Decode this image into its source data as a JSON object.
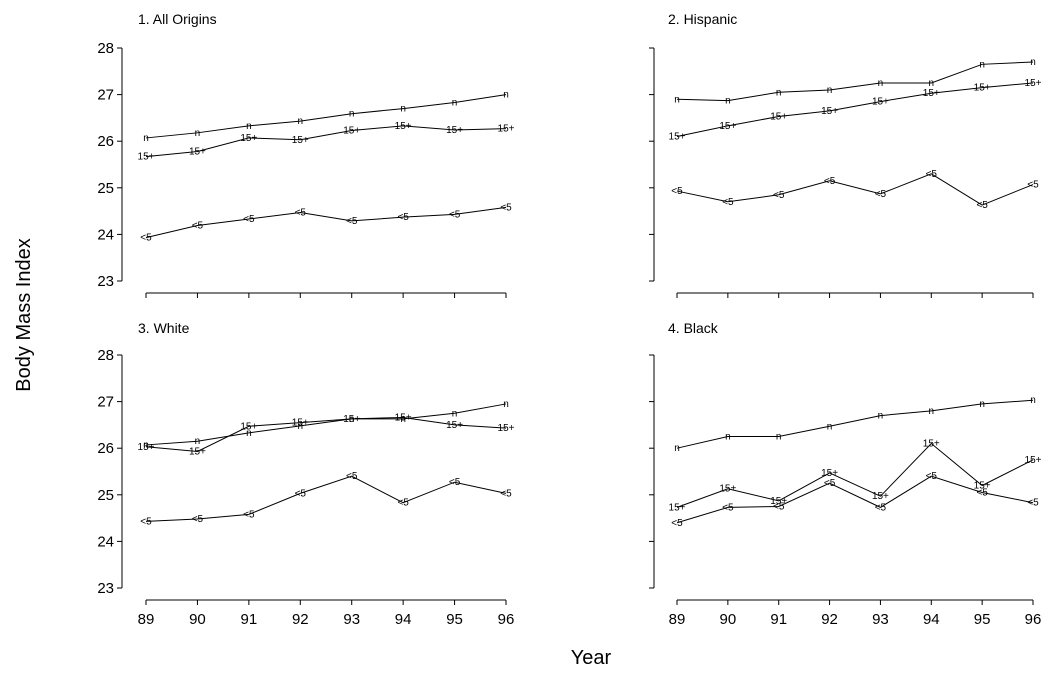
{
  "chart_data": {
    "type": "line",
    "xlabel": "Year",
    "ylabel": "Body Mass Index",
    "x": [
      "89",
      "90",
      "91",
      "92",
      "93",
      "94",
      "95",
      "96"
    ],
    "ylim": [
      23,
      28
    ],
    "yticks": [
      "23",
      "24",
      "25",
      "26",
      "27",
      "28"
    ],
    "grid": false,
    "panels": [
      {
        "title": "1. All Origins",
        "series": [
          {
            "name": "n",
            "values": [
              26.07,
              26.18,
              26.33,
              26.43,
              26.59,
              26.7,
              26.83,
              27.0
            ]
          },
          {
            "name": "15+",
            "values": [
              25.67,
              25.78,
              26.07,
              26.03,
              26.23,
              26.33,
              26.24,
              26.27
            ]
          },
          {
            "name": "<5",
            "values": [
              23.93,
              24.19,
              24.33,
              24.47,
              24.29,
              24.37,
              24.43,
              24.58
            ]
          }
        ]
      },
      {
        "title": "2. Hispanic",
        "series": [
          {
            "name": "n",
            "values": [
              26.9,
              26.87,
              27.05,
              27.1,
              27.25,
              27.25,
              27.65,
              27.7
            ]
          },
          {
            "name": "15+",
            "values": [
              26.1,
              26.33,
              26.53,
              26.65,
              26.85,
              27.03,
              27.15,
              27.25
            ]
          },
          {
            "name": "<5",
            "values": [
              24.93,
              24.7,
              24.85,
              25.15,
              24.87,
              25.3,
              24.63,
              25.07
            ]
          }
        ]
      },
      {
        "title": "3. White",
        "series": [
          {
            "name": "n",
            "values": [
              26.07,
              26.15,
              26.33,
              26.48,
              26.63,
              26.63,
              26.75,
              26.95
            ]
          },
          {
            "name": "15+",
            "values": [
              26.03,
              25.93,
              26.47,
              26.55,
              26.63,
              26.66,
              26.5,
              26.43
            ]
          },
          {
            "name": "<5",
            "values": [
              24.43,
              24.48,
              24.58,
              25.03,
              25.4,
              24.83,
              25.27,
              25.03
            ]
          }
        ]
      },
      {
        "title": "4. Black",
        "series": [
          {
            "name": "n",
            "values": [
              26.0,
              26.25,
              26.25,
              26.47,
              26.7,
              26.8,
              26.95,
              27.03
            ]
          },
          {
            "name": "15+",
            "values": [
              24.73,
              25.13,
              24.87,
              25.47,
              24.97,
              26.1,
              25.2,
              25.75
            ]
          },
          {
            "name": "<5",
            "values": [
              24.4,
              24.73,
              24.75,
              25.25,
              24.73,
              25.4,
              25.05,
              24.83
            ]
          }
        ]
      }
    ]
  }
}
